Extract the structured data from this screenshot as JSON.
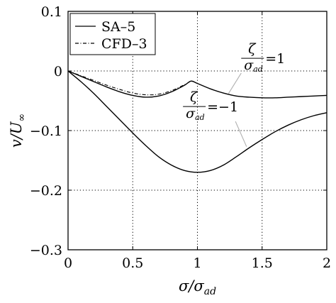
{
  "chart_data": {
    "type": "line",
    "xlabel": "σ/σ_ad",
    "xlabel_parts": {
      "main": "σ/σ",
      "sub": "ad"
    },
    "ylabel": "v/U_∞",
    "ylabel_parts": {
      "main": "v/U",
      "sub": "∞"
    },
    "xlim": [
      0,
      2
    ],
    "ylim": [
      -0.3,
      0.1
    ],
    "xticks": [
      0,
      0.5,
      1,
      1.5,
      2
    ],
    "xtick_labels": [
      "0",
      "0.5",
      "1",
      "1.5",
      "2"
    ],
    "yticks": [
      -0.3,
      -0.2,
      -0.1,
      0,
      0.1
    ],
    "ytick_labels": [
      "−0.3",
      "−0.2",
      "−0.1",
      "0",
      "0.1"
    ],
    "grid": true,
    "grid_style": "dotted",
    "legend": {
      "position": "top-left",
      "entries": [
        {
          "label": "SA–5",
          "style": "solid"
        },
        {
          "label": "CFD–3",
          "style": "dashdot"
        }
      ]
    },
    "series": [
      {
        "name": "SA–5",
        "curve": "ζ/σ_ad = 1",
        "style": "solid",
        "color": "#000000",
        "x": [
          0,
          0.1,
          0.2,
          0.3,
          0.4,
          0.5,
          0.6,
          0.7,
          0.8,
          0.9,
          0.95,
          1.0,
          1.1,
          1.2,
          1.3,
          1.4,
          1.5,
          1.6,
          1.7,
          1.8,
          1.9,
          2.0
        ],
        "y": [
          0,
          -0.009,
          -0.018,
          -0.027,
          -0.035,
          -0.041,
          -0.044,
          -0.042,
          -0.035,
          -0.024,
          -0.017,
          -0.021,
          -0.03,
          -0.037,
          -0.042,
          -0.044,
          -0.045,
          -0.045,
          -0.044,
          -0.043,
          -0.042,
          -0.041
        ]
      },
      {
        "name": "CFD–3",
        "curve": "ζ/σ_ad = 1",
        "style": "dashdot",
        "color": "#000000",
        "x": [
          0,
          0.1,
          0.2,
          0.3,
          0.4,
          0.5,
          0.6,
          0.7,
          0.8,
          0.9,
          0.95
        ],
        "y": [
          0,
          -0.008,
          -0.016,
          -0.024,
          -0.031,
          -0.037,
          -0.04,
          -0.039,
          -0.033,
          -0.023,
          -0.017
        ]
      },
      {
        "name": "SA–5",
        "curve": "ζ/σ_ad = −1",
        "style": "solid",
        "color": "#000000",
        "x": [
          0,
          0.1,
          0.2,
          0.3,
          0.4,
          0.5,
          0.6,
          0.7,
          0.8,
          0.9,
          1.0,
          1.1,
          1.2,
          1.3,
          1.4,
          1.5,
          1.6,
          1.7,
          1.8,
          1.9,
          2.0
        ],
        "y": [
          0,
          -0.018,
          -0.038,
          -0.06,
          -0.082,
          -0.104,
          -0.125,
          -0.144,
          -0.158,
          -0.167,
          -0.17,
          -0.167,
          -0.158,
          -0.144,
          -0.129,
          -0.115,
          -0.102,
          -0.091,
          -0.082,
          -0.075,
          -0.07
        ]
      }
    ],
    "annotations": [
      {
        "name": "zeta-pos",
        "num": "ζ",
        "den": "σ",
        "den_sub": "ad",
        "value": "=1",
        "at": [
          1.24,
          -0.038
        ],
        "label_at": [
          1.47,
          0.013
        ]
      },
      {
        "name": "zeta-neg",
        "num": "ζ",
        "den": "σ",
        "den_sub": "ad",
        "value": "=−1",
        "at": [
          1.38,
          -0.127
        ],
        "label_at": [
          1.02,
          -0.068
        ]
      }
    ]
  }
}
